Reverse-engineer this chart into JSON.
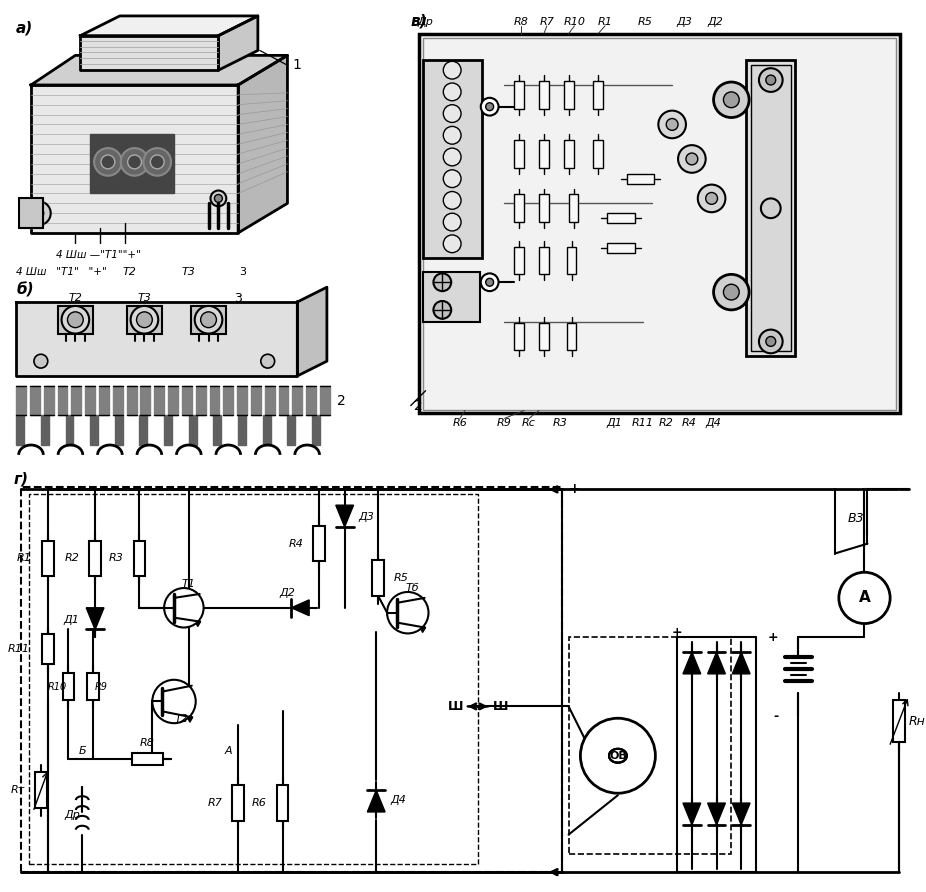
{
  "background": "#ffffff",
  "fig_w": 9.26,
  "fig_h": 8.92,
  "dpi": 100,
  "label_a": "а)",
  "label_b": "б)",
  "label_v": "в)",
  "label_g": "г)",
  "label_1": "1",
  "label_2": "2",
  "label_3": "3",
  "pcb_top_labels": [
    "Др",
    "R8",
    "R7",
    "R10",
    "R1",
    "R5",
    "Д3",
    "Д2"
  ],
  "pcb_bot_labels": [
    "R6",
    "R9",
    "Rс",
    "R3",
    "Д1",
    "R11",
    "R2",
    "R4",
    "Д4"
  ],
  "circuit_top_labels": [
    "R1",
    "R2",
    "R3",
    "R4",
    "Д3",
    "R5",
    "Д2",
    "Д1",
    "T1",
    "T2",
    "Тб",
    "А",
    "Б",
    "Ш",
    "ОВ",
    "В3",
    "A",
    "Rн",
    "R7",
    "R6",
    "Д4",
    "R8",
    "R10",
    "R9",
    "R11",
    "Rт",
    "Дp"
  ],
  "black": "#000000",
  "gray1": "#e8e8e8",
  "gray2": "#d0d0d0",
  "gray3": "#b0b0b0"
}
